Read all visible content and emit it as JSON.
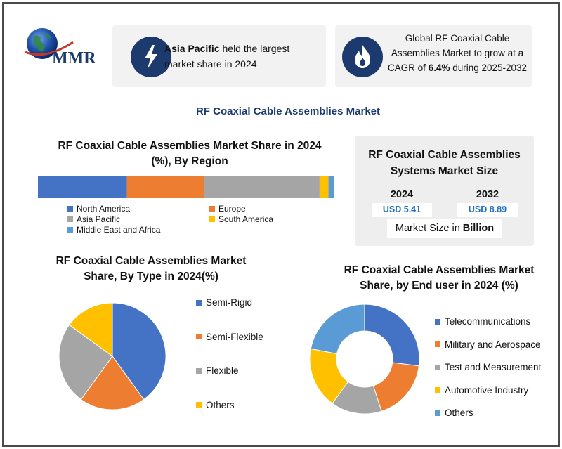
{
  "logo": {
    "text": "MMR"
  },
  "info_cards": {
    "left": {
      "highlight": "Asia Pacific",
      "rest": " held the largest market share in 2024"
    },
    "right": {
      "line1": "Global RF Coaxial Cable",
      "line2": "Assemblies Market to grow at a",
      "line3_prefix": "CAGR of ",
      "line3_highlight": "6.4%",
      "line3_suffix": " during 2025-2032"
    }
  },
  "main_title": "RF Coaxial Cable Assemblies Market",
  "size_panel": {
    "title": "RF Coaxial Cable Assemblies Systems Market Size",
    "year1": "2024",
    "value1": "USD 5.41",
    "year2": "2032",
    "value2": "USD 8.89",
    "footer_prefix": "Market Size in ",
    "footer_bold": "Billion"
  },
  "colors": {
    "blue": "#4472c4",
    "orange": "#ed7d31",
    "gray": "#a5a5a5",
    "yellow": "#ffc000",
    "lightblue": "#5b9bd5",
    "navy": "#1d3a6e",
    "accent_blue": "#1f6fc0"
  },
  "chart_data": [
    {
      "type": "bar",
      "title": "RF Coaxial Cable Assemblies Market Share in 2024 (%), By Region",
      "stacked": true,
      "categories": [
        "2024"
      ],
      "series": [
        {
          "name": "North America",
          "values": [
            30
          ]
        },
        {
          "name": "Europe",
          "values": [
            26
          ]
        },
        {
          "name": "Asia Pacific",
          "values": [
            39
          ]
        },
        {
          "name": "South America",
          "values": [
            3
          ]
        },
        {
          "name": "Middle East and Africa",
          "values": [
            2
          ]
        }
      ],
      "legend": "bottom"
    },
    {
      "type": "pie",
      "title": "RF Coaxial Cable Assemblies Market Share, By Type in 2024(%)",
      "labels": [
        "Semi-Rigid",
        "Semi-Flexible",
        "Flexible",
        "Others"
      ],
      "values": [
        40,
        20,
        25,
        15
      ],
      "legend": "right"
    },
    {
      "type": "pie",
      "donut": true,
      "title": "RF Coaxial Cable Assemblies Market Share, by End user in 2024 (%)",
      "labels": [
        "Telecommunications",
        "Military and Aerospace",
        "Test and Measurement",
        "Automotive Industry",
        "Others"
      ],
      "values": [
        27,
        18,
        15,
        18,
        22
      ],
      "legend": "right"
    }
  ]
}
